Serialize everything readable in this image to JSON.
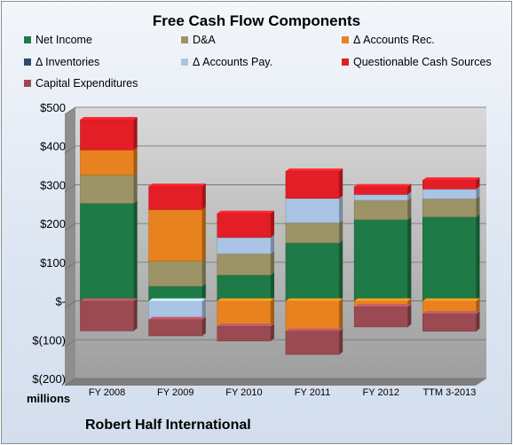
{
  "chart_data": {
    "type": "bar",
    "stacked": true,
    "title": "Free Cash Flow Components",
    "units_label": "millions",
    "company": "Robert Half International",
    "categories": [
      "FY 2008",
      "FY 2009",
      "FY 2010",
      "FY 2011",
      "FY 2012",
      "TTM 3-2013"
    ],
    "y_tick_labels": [
      "$500",
      "$400",
      "$300",
      "$200",
      "$100",
      "$-",
      "$(100)",
      "$(200)"
    ],
    "ylim": [
      -200,
      500
    ],
    "grid": true,
    "legend_position": "top",
    "series": [
      {
        "name": "Net Income",
        "color": "#1e7a46",
        "values": [
          252,
          38,
          67,
          150,
          210,
          217
        ]
      },
      {
        "name": "D&A",
        "color": "#9c9466",
        "values": [
          73,
          65,
          55,
          52,
          50,
          47
        ]
      },
      {
        "name": "Δ Accounts Rec.",
        "color": "#e8821e",
        "values": [
          65,
          133,
          -65,
          -78,
          -15,
          -33
        ]
      },
      {
        "name": "Δ Inventories",
        "color": "#2b4a6b",
        "values": [
          0,
          0,
          0,
          0,
          0,
          0
        ]
      },
      {
        "name": "Δ Accounts Pay.",
        "color": "#a9c4e4",
        "values": [
          0,
          -48,
          42,
          63,
          15,
          25
        ]
      },
      {
        "name": "Questionable Cash Sources",
        "color": "#e41e26",
        "values": [
          78,
          60,
          62,
          70,
          20,
          23
        ]
      },
      {
        "name": "Capital Expenditures",
        "color": "#9b4a52",
        "values": [
          -77,
          -42,
          -38,
          -60,
          -52,
          -45
        ]
      }
    ]
  }
}
